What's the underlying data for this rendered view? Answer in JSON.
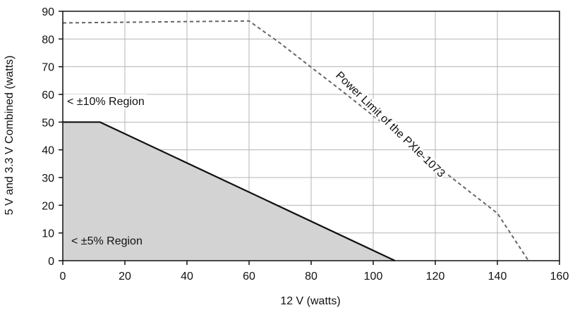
{
  "chart_data": {
    "type": "area",
    "xlabel": "12 V (watts)",
    "ylabel": "5 V and 3.3 V Combined (watts)",
    "xlim": [
      0,
      160
    ],
    "ylim": [
      0,
      90
    ],
    "xticks": [
      "0",
      "20",
      "40",
      "60",
      "80",
      "100",
      "120",
      "140",
      "160"
    ],
    "yticks": [
      "0",
      "10",
      "20",
      "30",
      "40",
      "50",
      "60",
      "70",
      "80",
      "90"
    ],
    "grid": true,
    "series": [
      {
        "style": "filled-area",
        "color": "#d3d3d3",
        "edge_color": "#111111",
        "x": [
          0,
          12,
          107
        ],
        "y": [
          50,
          50,
          0
        ]
      },
      {
        "name": "Power Limit of the PXIe-1073",
        "style": "dashed-line",
        "color": "#666666",
        "x": [
          0,
          60,
          70,
          80,
          90,
          100,
          110,
          120,
          130,
          140,
          150
        ],
        "y": [
          85.8,
          86.5,
          78.5,
          69.8,
          61.2,
          52.3,
          43.6,
          34.6,
          25.8,
          17.1,
          0
        ]
      }
    ],
    "annotations": [
      {
        "text": "< ±10% Region"
      },
      {
        "text": "< ±5% Region"
      },
      {
        "text": "Power Limit of the PXIe-1073"
      }
    ]
  }
}
